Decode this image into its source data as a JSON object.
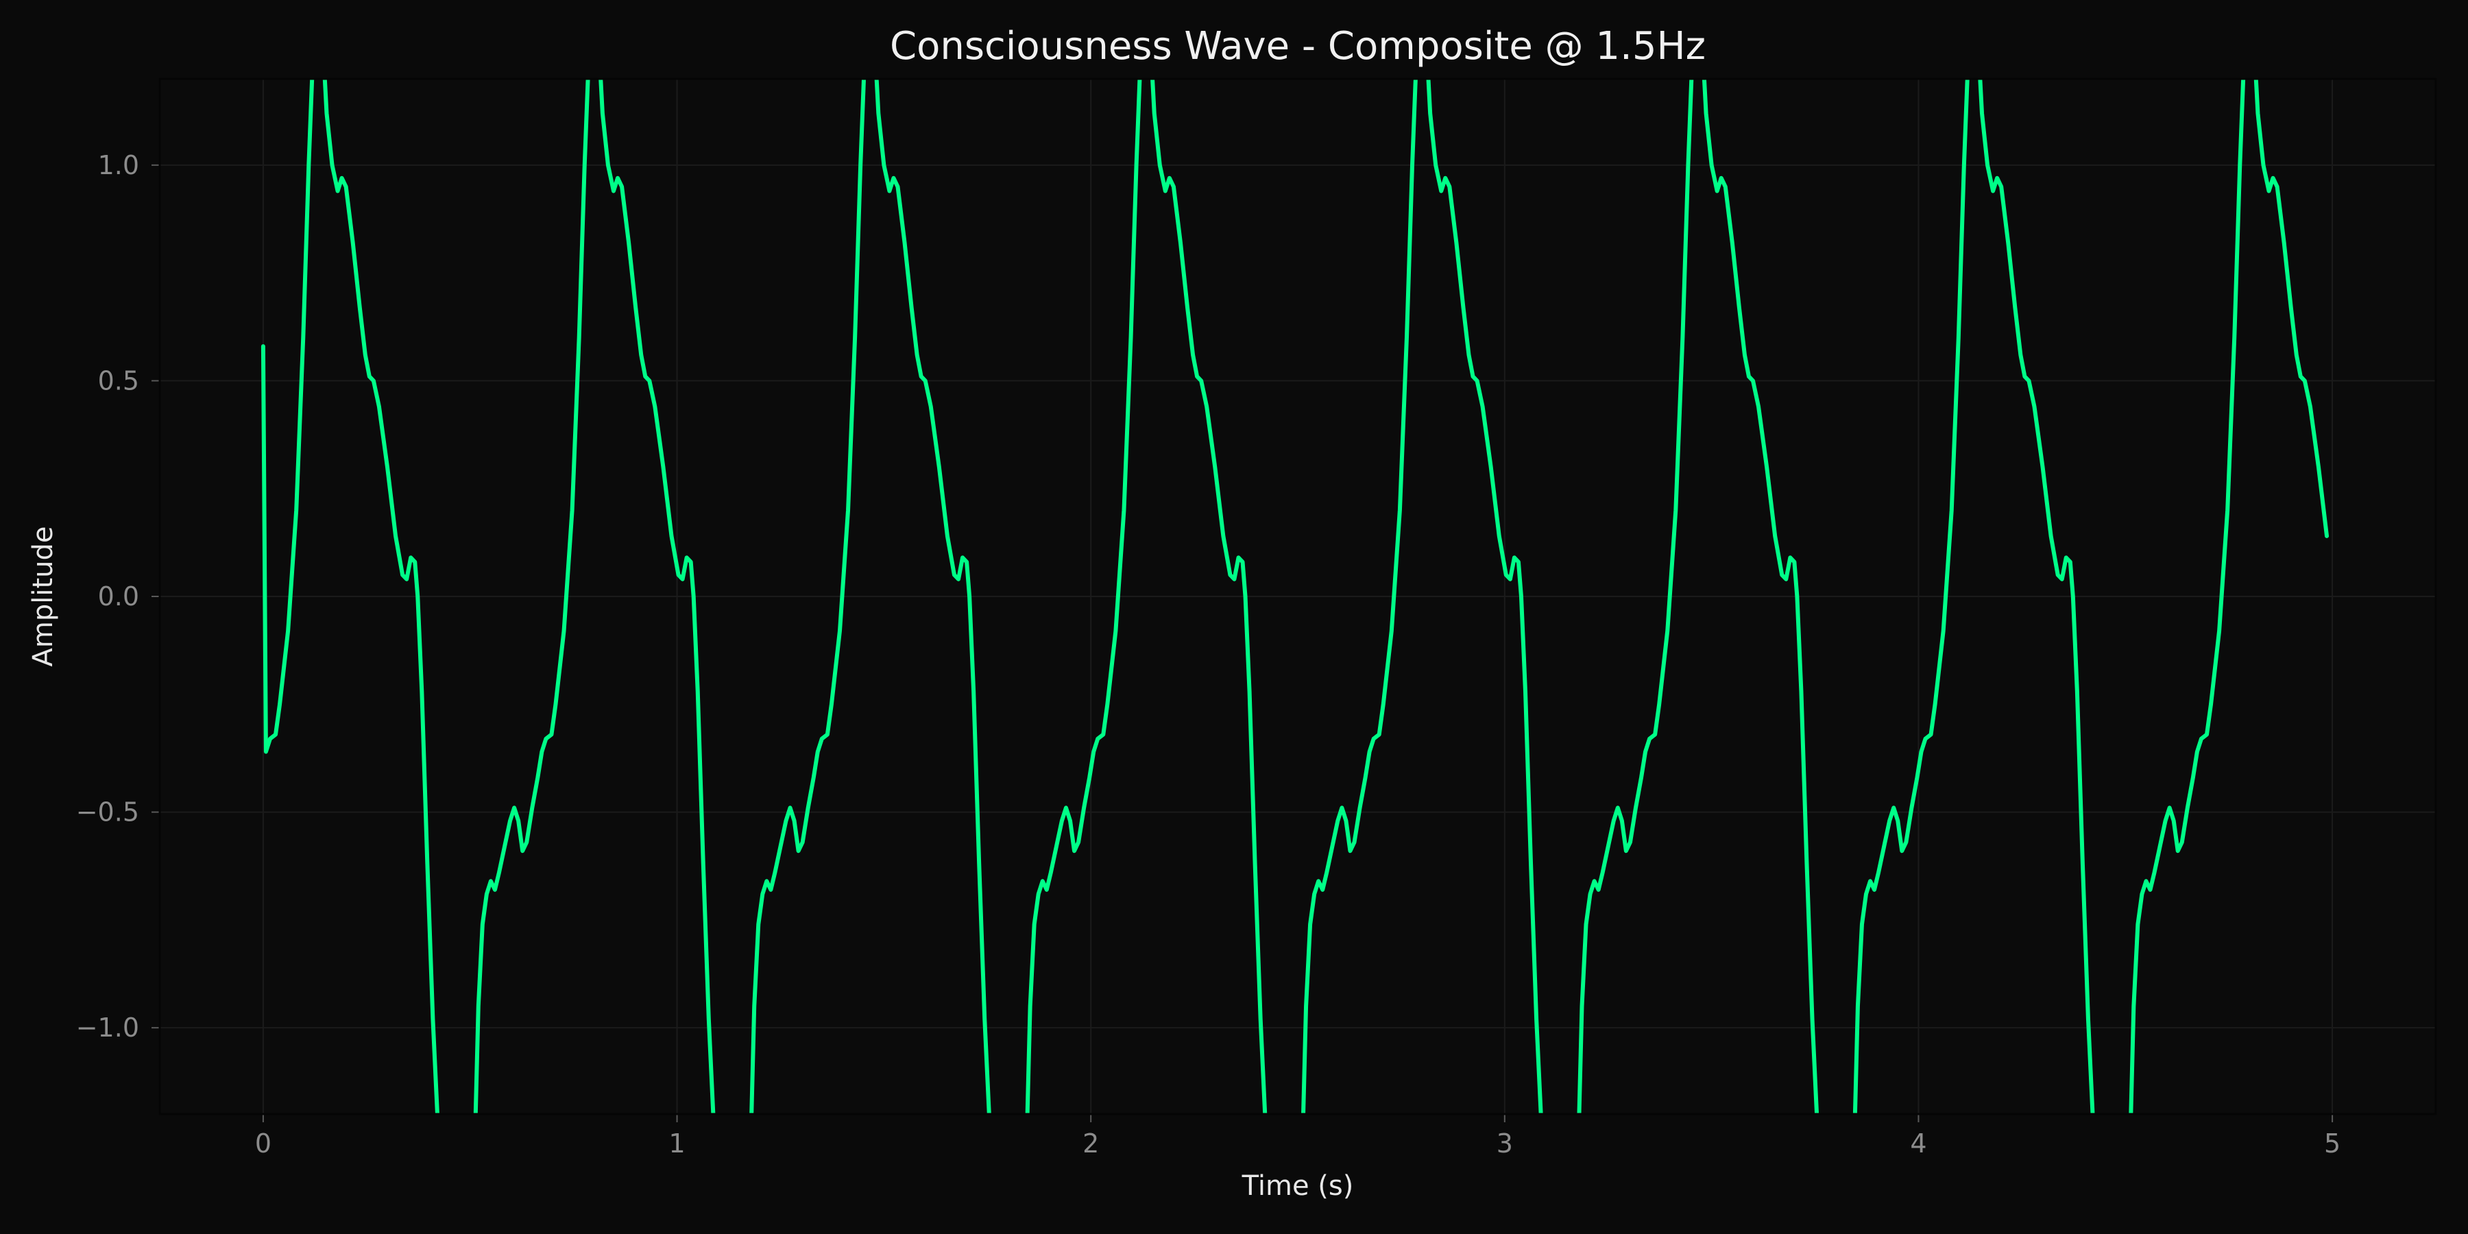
{
  "chart_data": {
    "type": "line",
    "title": "Consciousness Wave - Composite @ 1.5Hz",
    "xlabel": "Time (s)",
    "ylabel": "Amplitude",
    "xlim": [
      -0.25,
      5.25
    ],
    "ylim": [
      -1.2,
      1.2
    ],
    "x_ticks": [
      0,
      1,
      2,
      3,
      4,
      5
    ],
    "x_tick_labels": [
      "0",
      "1",
      "2",
      "3",
      "4",
      "5"
    ],
    "y_ticks": [
      -1.0,
      -0.5,
      0.0,
      0.5,
      1.0
    ],
    "y_tick_labels": [
      "−1.0",
      "−0.5",
      "0.0",
      "0.5",
      "1.0"
    ],
    "grid": true,
    "series": [
      {
        "color": "#00ff88",
        "frequency_hz": 1.5,
        "x_start": 0,
        "x_end": 5,
        "cycle_shape": [
          [
            0.0,
            -1.32
          ],
          [
            0.01,
            -1.2
          ],
          [
            0.02,
            -0.95
          ],
          [
            0.035,
            -0.76
          ],
          [
            0.05,
            -0.69
          ],
          [
            0.065,
            -0.66
          ],
          [
            0.08,
            -0.68
          ],
          [
            0.095,
            -0.64
          ],
          [
            0.115,
            -0.58
          ],
          [
            0.135,
            -0.52
          ],
          [
            0.15,
            -0.49
          ],
          [
            0.165,
            -0.52
          ],
          [
            0.18,
            -0.59
          ],
          [
            0.195,
            -0.57
          ],
          [
            0.215,
            -0.49
          ],
          [
            0.235,
            -0.42
          ],
          [
            0.25,
            -0.36
          ],
          [
            0.265,
            -0.33
          ],
          [
            0.285,
            -0.32
          ],
          [
            0.3,
            -0.25
          ],
          [
            0.33,
            -0.08
          ],
          [
            0.36,
            0.2
          ],
          [
            0.385,
            0.6
          ],
          [
            0.405,
            1.0
          ],
          [
            0.425,
            1.33
          ],
          [
            0.45,
            1.36
          ],
          [
            0.47,
            1.12
          ],
          [
            0.49,
            1.0
          ],
          [
            0.51,
            0.94
          ],
          [
            0.525,
            0.97
          ],
          [
            0.54,
            0.95
          ],
          [
            0.565,
            0.82
          ],
          [
            0.59,
            0.67
          ],
          [
            0.61,
            0.56
          ],
          [
            0.625,
            0.51
          ],
          [
            0.64,
            0.5
          ],
          [
            0.66,
            0.44
          ],
          [
            0.69,
            0.3
          ],
          [
            0.72,
            0.14
          ],
          [
            0.745,
            0.05
          ],
          [
            0.76,
            0.04
          ],
          [
            0.775,
            0.09
          ],
          [
            0.79,
            0.08
          ],
          [
            0.8,
            0.0
          ],
          [
            0.815,
            -0.22
          ],
          [
            0.835,
            -0.62
          ],
          [
            0.855,
            -0.98
          ],
          [
            0.875,
            -1.25
          ],
          [
            0.895,
            -1.34
          ],
          [
            0.925,
            -1.36
          ],
          [
            0.955,
            -1.36
          ],
          [
            0.985,
            -1.34
          ],
          [
            1.0,
            -1.32
          ]
        ]
      }
    ]
  }
}
